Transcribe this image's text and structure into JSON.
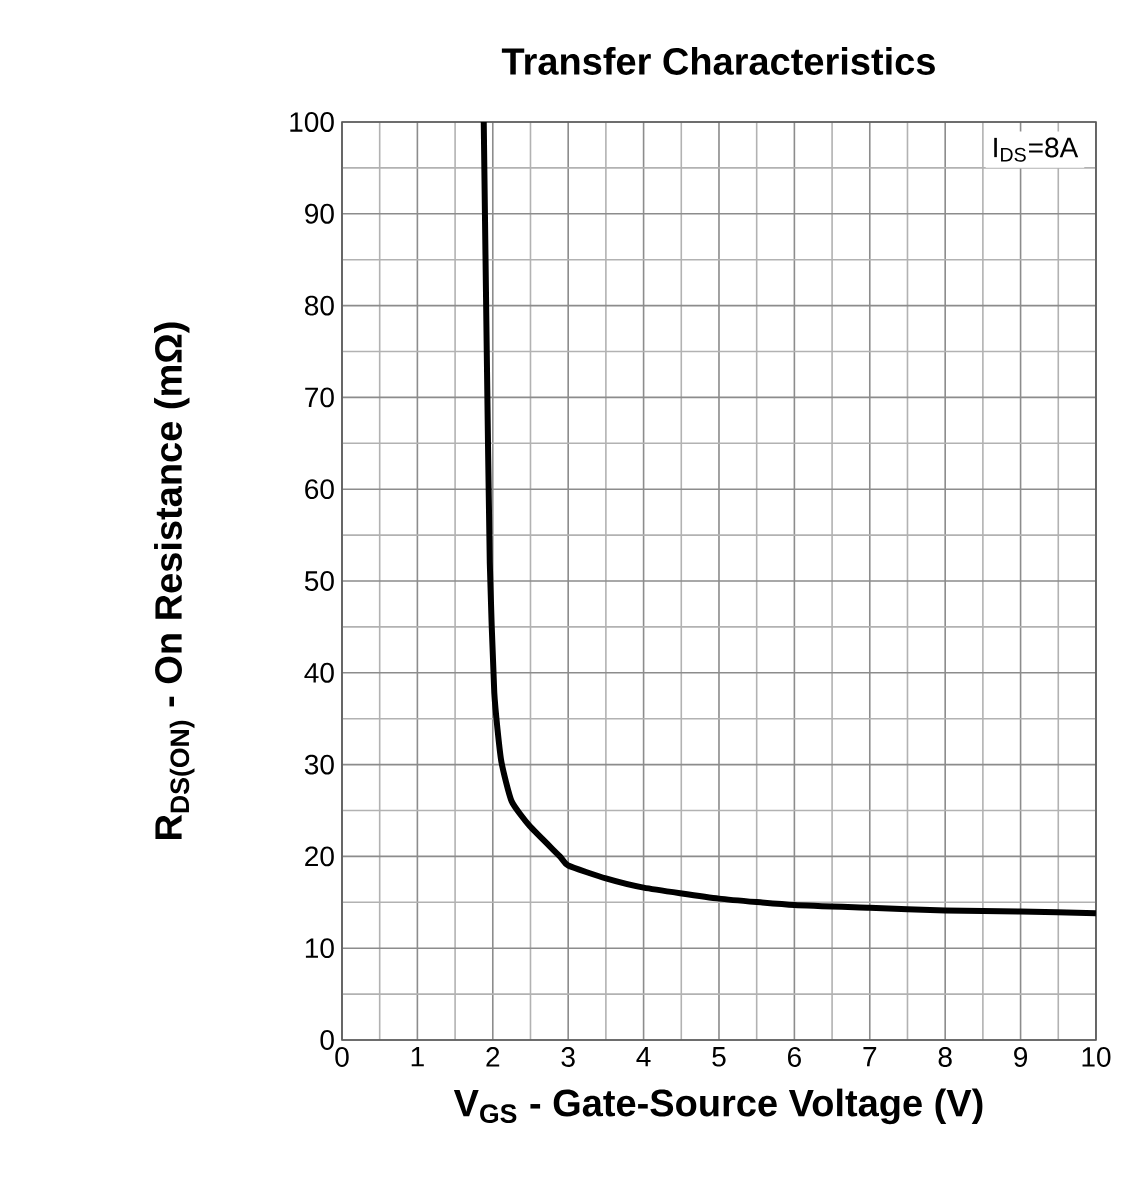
{
  "chart_data": {
    "type": "line",
    "title": "Transfer Characteristics",
    "xlabel": "V$_{GS}$ - Gate-Source Voltage (V)",
    "ylabel": "R$_{DS(ON)}$ - On Resistance (mΩ)",
    "annotations": [
      "I$_{DS}$=8A"
    ],
    "x": [
      1.88,
      1.92,
      1.96,
      2.02,
      2.11,
      2.25,
      2.49,
      2.89,
      3,
      3.5,
      4,
      5,
      6,
      7,
      8,
      9,
      10
    ],
    "values": [
      100,
      75,
      52,
      37.8,
      30.5,
      26,
      23.3,
      20,
      19,
      17.6,
      16.6,
      15.4,
      14.7,
      14.4,
      14.1,
      14.0,
      13.8
    ],
    "color": "#000000",
    "line_style": "solid",
    "grid": true,
    "xlim": [
      0,
      10
    ],
    "ylim": [
      0,
      100
    ],
    "xticks": [
      0,
      1,
      2,
      3,
      4,
      5,
      6,
      7,
      8,
      9,
      10
    ],
    "yticks": [
      0,
      10,
      20,
      30,
      40,
      50,
      60,
      70,
      80,
      90,
      100
    ]
  }
}
